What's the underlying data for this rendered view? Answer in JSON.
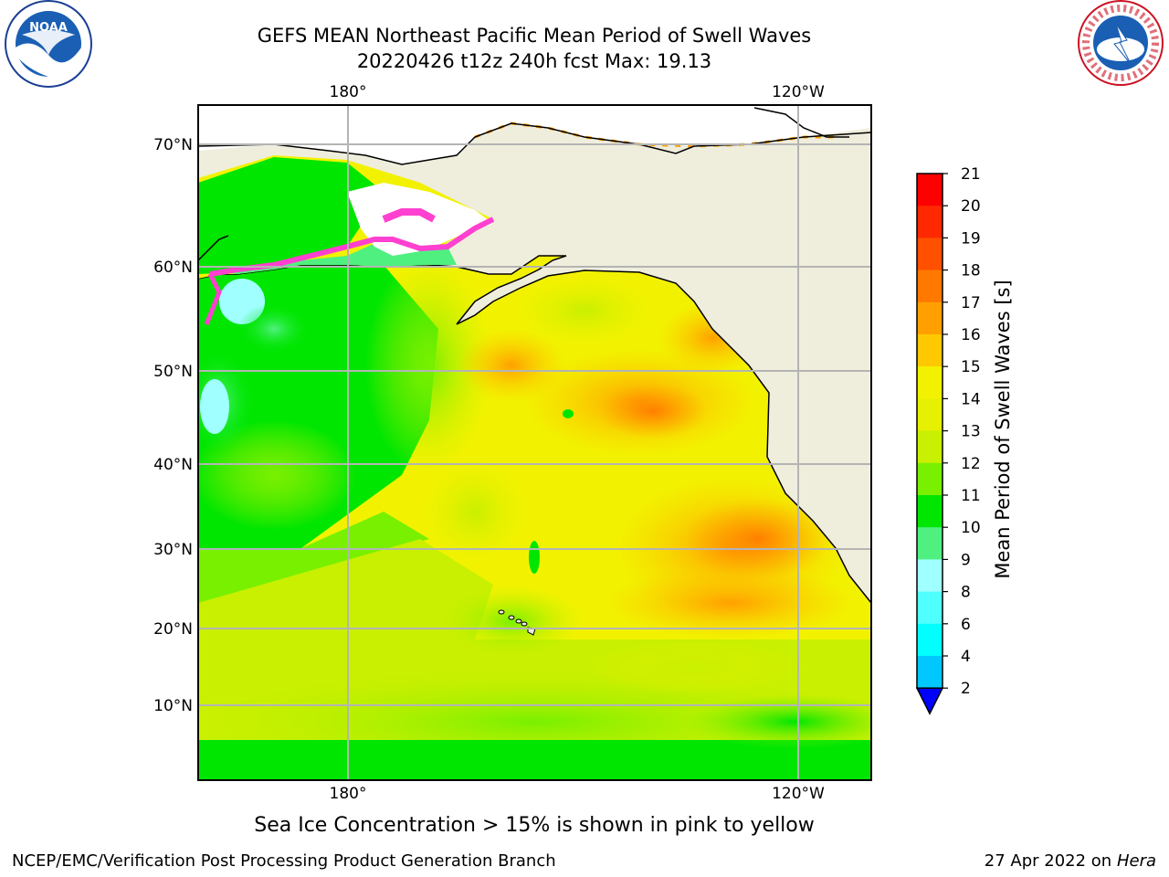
{
  "header": {
    "title_line1": "GEFS MEAN Northeast Pacific Mean Period of Swell Waves",
    "title_line2": "20220426 t12z 240h fcst   Max: 19.13"
  },
  "logos": {
    "left": "NOAA",
    "right": "NATIONAL WEATHER SERVICE"
  },
  "map": {
    "lat_labels": [
      "70°N",
      "60°N",
      "50°N",
      "40°N",
      "30°N",
      "20°N",
      "10°N"
    ],
    "lon_labels": [
      "180°",
      "120°W"
    ],
    "land_color": "#efeddc",
    "ocean_base_color": "#f2f200"
  },
  "colorbar": {
    "label": "Mean Period of Swell Waves [s]",
    "ticks": [
      "21",
      "20",
      "19",
      "18",
      "17",
      "16",
      "15",
      "14",
      "13",
      "12",
      "11",
      "10",
      "9",
      "8",
      "6",
      "4",
      "2"
    ],
    "colors": [
      "#ff0000",
      "#ff2800",
      "#ff5000",
      "#ff7800",
      "#ffa000",
      "#ffc800",
      "#f2f200",
      "#e6f000",
      "#c8f000",
      "#78f000",
      "#00e600",
      "#50f080",
      "#a0ffff",
      "#50ffff",
      "#00ffff",
      "#00c8ff",
      "#0064ff",
      "#0000ff"
    ]
  },
  "note": "Sea Ice Concentration > 15% is shown in pink to yellow",
  "footer": {
    "left": "NCEP/EMC/Verification Post Processing Product Generation Branch",
    "right_prefix": "27 Apr 2022 on ",
    "right_host": "Hera"
  }
}
